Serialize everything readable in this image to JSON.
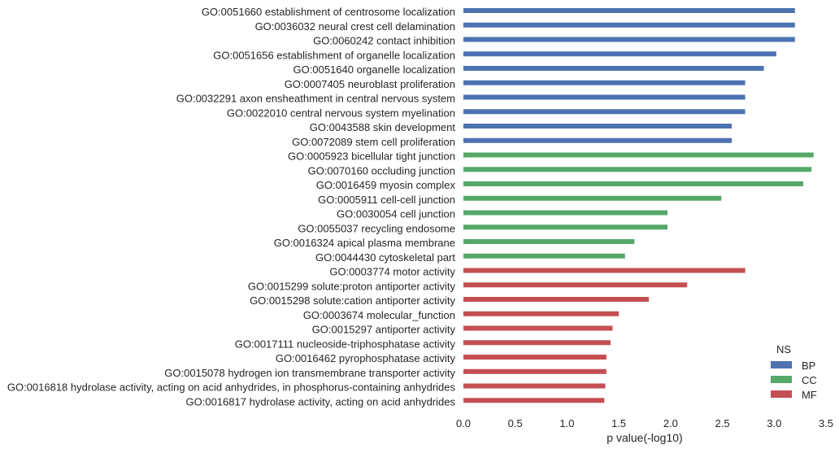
{
  "chart_data": {
    "type": "bar",
    "orientation": "horizontal",
    "xlabel": "p value(-log10)",
    "xlim": [
      0,
      3.5
    ],
    "xticks": [
      "0.0",
      "0.5",
      "1.0",
      "1.5",
      "2.0",
      "2.5",
      "3.0",
      "3.5"
    ],
    "grid": false,
    "legend": {
      "title": "NS",
      "position": "bottom-right"
    },
    "series": [
      {
        "name": "BP",
        "color": "#4c72b0"
      },
      {
        "name": "CC",
        "color": "#55a868"
      },
      {
        "name": "MF",
        "color": "#c44e52"
      }
    ],
    "bars": [
      {
        "label": "GO:0051660 establishment of centrosome localization",
        "value": 3.2,
        "ns": "BP"
      },
      {
        "label": "GO:0036032 neural crest cell delamination",
        "value": 3.2,
        "ns": "BP"
      },
      {
        "label": "GO:0060242 contact inhibition",
        "value": 3.2,
        "ns": "BP"
      },
      {
        "label": "GO:0051656 establishment of organelle localization",
        "value": 3.02,
        "ns": "BP"
      },
      {
        "label": "GO:0051640 organelle localization",
        "value": 2.9,
        "ns": "BP"
      },
      {
        "label": "GO:0007405 neuroblast proliferation",
        "value": 2.72,
        "ns": "BP"
      },
      {
        "label": "GO:0032291 axon ensheathment in central nervous system",
        "value": 2.72,
        "ns": "BP"
      },
      {
        "label": "GO:0022010 central nervous system myelination",
        "value": 2.72,
        "ns": "BP"
      },
      {
        "label": "GO:0043588 skin development",
        "value": 2.59,
        "ns": "BP"
      },
      {
        "label": "GO:0072089 stem cell proliferation",
        "value": 2.59,
        "ns": "BP"
      },
      {
        "label": "GO:0005923 bicellular tight junction",
        "value": 3.38,
        "ns": "CC"
      },
      {
        "label": "GO:0070160 occluding junction",
        "value": 3.36,
        "ns": "CC"
      },
      {
        "label": "GO:0016459 myosin complex",
        "value": 3.28,
        "ns": "CC"
      },
      {
        "label": "GO:0005911 cell-cell junction",
        "value": 2.49,
        "ns": "CC"
      },
      {
        "label": "GO:0030054 cell junction",
        "value": 1.97,
        "ns": "CC"
      },
      {
        "label": "GO:0055037 recycling endosome",
        "value": 1.97,
        "ns": "CC"
      },
      {
        "label": "GO:0016324 apical plasma membrane",
        "value": 1.65,
        "ns": "CC"
      },
      {
        "label": "GO:0044430 cytoskeletal part",
        "value": 1.56,
        "ns": "CC"
      },
      {
        "label": "GO:0003774 motor activity",
        "value": 2.72,
        "ns": "MF"
      },
      {
        "label": "GO:0015299 solute:proton antiporter activity",
        "value": 2.16,
        "ns": "MF"
      },
      {
        "label": "GO:0015298 solute:cation antiporter activity",
        "value": 1.79,
        "ns": "MF"
      },
      {
        "label": "GO:0003674 molecular_function",
        "value": 1.5,
        "ns": "MF"
      },
      {
        "label": "GO:0015297 antiporter activity",
        "value": 1.44,
        "ns": "MF"
      },
      {
        "label": "GO:0017111 nucleoside-triphosphatase activity",
        "value": 1.42,
        "ns": "MF"
      },
      {
        "label": "GO:0016462 pyrophosphatase activity",
        "value": 1.38,
        "ns": "MF"
      },
      {
        "label": "GO:0015078 hydrogen ion transmembrane transporter activity",
        "value": 1.38,
        "ns": "MF"
      },
      {
        "label": "GO:0016818 hydrolase activity, acting on acid anhydrides, in phosphorus-containing anhydrides",
        "value": 1.37,
        "ns": "MF"
      },
      {
        "label": "GO:0016817 hydrolase activity, acting on acid anhydrides",
        "value": 1.36,
        "ns": "MF"
      }
    ]
  }
}
